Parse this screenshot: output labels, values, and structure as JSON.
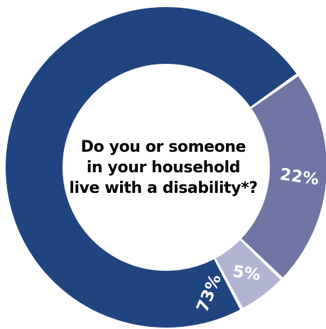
{
  "chart_data": {
    "type": "pie",
    "style": "donut",
    "title_lines": [
      "Do you or someone",
      "in your household",
      "live with a disability*?"
    ],
    "slices": [
      {
        "label": "73%",
        "value": 73,
        "color": "#1f4480"
      },
      {
        "label": "22%",
        "value": 22,
        "color": "#7075a3"
      },
      {
        "label": "5%",
        "value": 5,
        "color": "#b1b4d2"
      }
    ]
  }
}
